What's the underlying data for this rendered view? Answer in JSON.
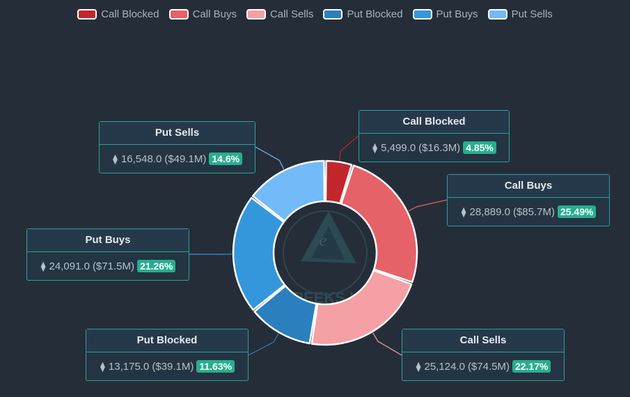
{
  "chart_data": {
    "type": "pie",
    "series": [
      {
        "name": "Call Blocked",
        "value": 5499.0,
        "usd": "($16.3M)",
        "pct": "4.85%",
        "value_label": "5,499.0",
        "color": "#c2272d"
      },
      {
        "name": "Call Buys",
        "value": 28889.0,
        "usd": "($85.7M)",
        "pct": "25.49%",
        "value_label": "28,889.0",
        "color": "#e56268"
      },
      {
        "name": "Call Sells",
        "value": 25124.0,
        "usd": "($74.5M)",
        "pct": "22.17%",
        "value_label": "25,124.0",
        "color": "#f4a0a4"
      },
      {
        "name": "Put Blocked",
        "value": 13175.0,
        "usd": "($39.1M)",
        "pct": "11.63%",
        "value_label": "13,175.0",
        "color": "#2b7fbf"
      },
      {
        "name": "Put Buys",
        "value": 24091.0,
        "usd": "($71.5M)",
        "pct": "21.26%",
        "value_label": "24,091.0",
        "color": "#3497db"
      },
      {
        "name": "Put Sells",
        "value": 16548.0,
        "usd": "($49.1M)",
        "pct": "14.6%",
        "value_label": "16,548.0",
        "color": "#72baf8"
      }
    ],
    "legend_position": "top-center",
    "watermark": "GREEKS.LIVE"
  }
}
